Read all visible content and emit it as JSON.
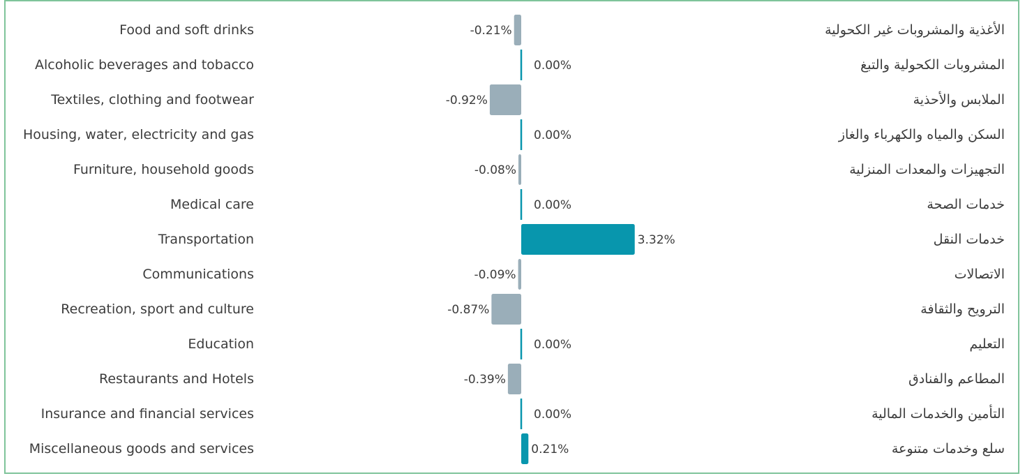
{
  "chart_data": {
    "type": "bar",
    "orientation": "horizontal",
    "categories": [
      "Food and soft drinks",
      "Alcoholic beverages and tobacco",
      "Textiles, clothing and footwear",
      "Housing, water, electricity and gas",
      "Furniture, household goods",
      "Medical care",
      "Transportation",
      "Communications",
      "Recreation, sport and culture",
      "Education",
      "Restaurants and Hotels",
      "Insurance and financial services",
      "Miscellaneous goods and services"
    ],
    "categories_ar": [
      "الأغذية والمشروبات غير الكحولية",
      "المشروبات الكحولية والتبغ",
      "الملابس والأحذية",
      "السكن والمياه والكهرباء والغاز",
      "التجهيزات والمعدات المنزلية",
      "خدمات الصحة",
      "خدمات النقل",
      "الاتصالات",
      "الترويح والثقافة",
      "التعليم",
      "المطاعم والفنادق",
      "التأمين والخدمات المالية",
      "سلع وخدمات متنوعة"
    ],
    "values": [
      -0.21,
      0.0,
      -0.92,
      0.0,
      -0.08,
      0.0,
      3.32,
      -0.09,
      -0.87,
      0.0,
      -0.39,
      0.0,
      0.21
    ],
    "value_labels": [
      "-0.21%",
      "0.00%",
      "-0.92%",
      "0.00%",
      "-0.08%",
      "0.00%",
      "3.32%",
      "-0.09%",
      "-0.87%",
      "0.00%",
      "-0.39%",
      "0.00%",
      "0.21%"
    ],
    "xlim": [
      -0.92,
      3.32
    ],
    "colors": {
      "positive": "#0896ad",
      "negative": "#9aaeb9",
      "zero": "#0896ad",
      "text": "#3c3c3c",
      "border": "#7fc49a"
    },
    "title": "",
    "xlabel": "",
    "ylabel": "",
    "grid": false,
    "legend": "none"
  }
}
